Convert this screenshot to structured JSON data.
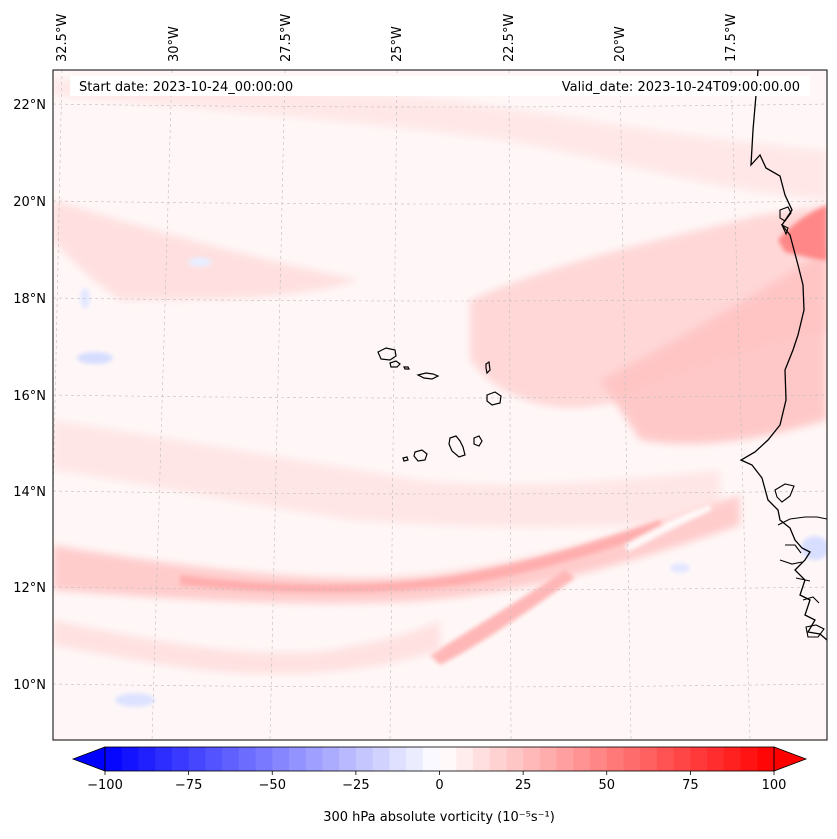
{
  "header": {
    "start_date": "Start date: 2023-10-24_00:00:00",
    "valid_date": "Valid_date: 2023-10-24T09:00:00.00"
  },
  "map": {
    "longitude_labels": [
      "32.5°W",
      "30°W",
      "27.5°W",
      "25°W",
      "22.5°W",
      "20°W",
      "17.5°W"
    ],
    "latitude_labels": [
      "22°N",
      "20°N",
      "18°N",
      "16°N",
      "14°N",
      "12°N",
      "10°N"
    ],
    "gridlines": true,
    "colors": {
      "coast": "#000000",
      "gridline": "#bdbdbd",
      "weak_positive": "#ffe0e0",
      "moderate_positive": "#ffb4b4",
      "strong_positive": "#ff4040",
      "weak_negative": "#e6ebff"
    }
  },
  "colorbar": {
    "ticks": [
      "−100",
      "−75",
      "−50",
      "−25",
      "0",
      "25",
      "50",
      "75",
      "100"
    ],
    "tick_values": [
      -100,
      -75,
      -50,
      -25,
      0,
      25,
      50,
      75,
      100
    ],
    "range": [
      -100,
      100
    ],
    "levels": 40,
    "colormap": "bwr",
    "extend": "both",
    "label": "300 hPa absolute vorticity (10⁻⁵s⁻¹)"
  }
}
